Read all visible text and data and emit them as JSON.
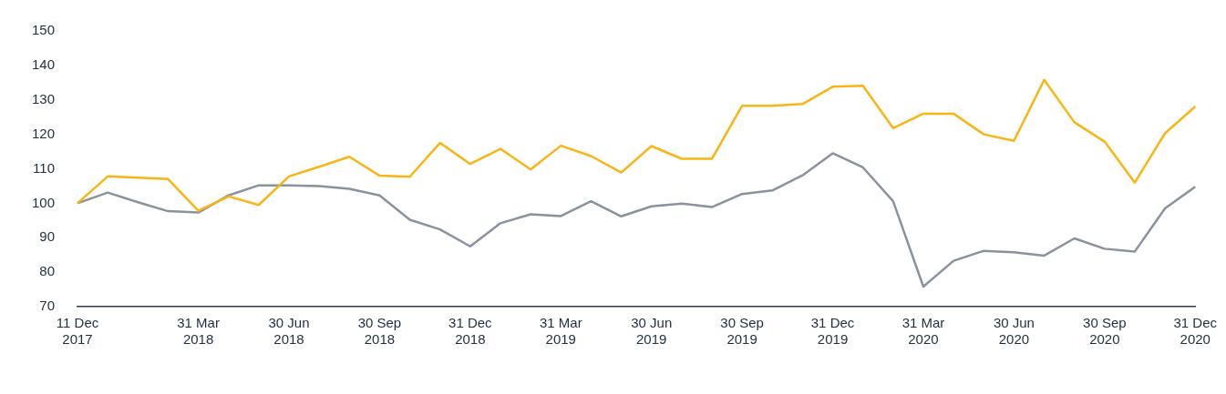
{
  "chart_data": {
    "type": "line",
    "marker": "none",
    "categories": [
      "11 Dec 2017",
      null,
      null,
      null,
      "31 Mar 2018",
      null,
      null,
      "30 Jun 2018",
      null,
      null,
      "30 Sep 2018",
      null,
      null,
      "31 Dec 2018",
      null,
      null,
      "31 Mar 2019",
      null,
      null,
      "30 Jun 2019",
      null,
      null,
      "30 Sep 2019",
      null,
      null,
      "31 Dec 2019",
      null,
      null,
      "31 Mar 2020",
      null,
      null,
      "30 Jun 2020",
      null,
      null,
      "30 Sep 2020",
      null,
      null,
      "31 Dec 2020"
    ],
    "series": [
      {
        "color": "#f8b514",
        "values": [
          100,
          107.8,
          107.4,
          107,
          97.8,
          102,
          99.5,
          107.8,
          110.6,
          113.5,
          108,
          107.7,
          117.5,
          111.4,
          115.8,
          109.8,
          116.7,
          113.7,
          108.9,
          116.6,
          112.9,
          112.9,
          128.3,
          128.3,
          128.8,
          133.8,
          134.1,
          121.8,
          126,
          126,
          120,
          118.1,
          135.8,
          123.5,
          117.9,
          106,
          120.3,
          128.1
        ]
      },
      {
        "color": "#8a929e",
        "values": [
          100,
          103.1,
          100.3,
          97.7,
          97.3,
          102.3,
          105.2,
          105.2,
          105,
          104.2,
          102.3,
          95.2,
          92.4,
          87.5,
          94.2,
          96.8,
          96.3,
          100.6,
          96.2,
          99.1,
          99.9,
          98.9,
          102.7,
          103.7,
          108.1,
          114.5,
          110.4,
          100.6,
          75.8,
          83.3,
          86.2,
          85.8,
          84.8,
          89.8,
          86.8,
          86,
          98.5,
          104.8
        ]
      }
    ],
    "ylim": [
      70,
      150
    ],
    "yticks": [
      70,
      80,
      90,
      100,
      110,
      120,
      130,
      140,
      150
    ]
  }
}
